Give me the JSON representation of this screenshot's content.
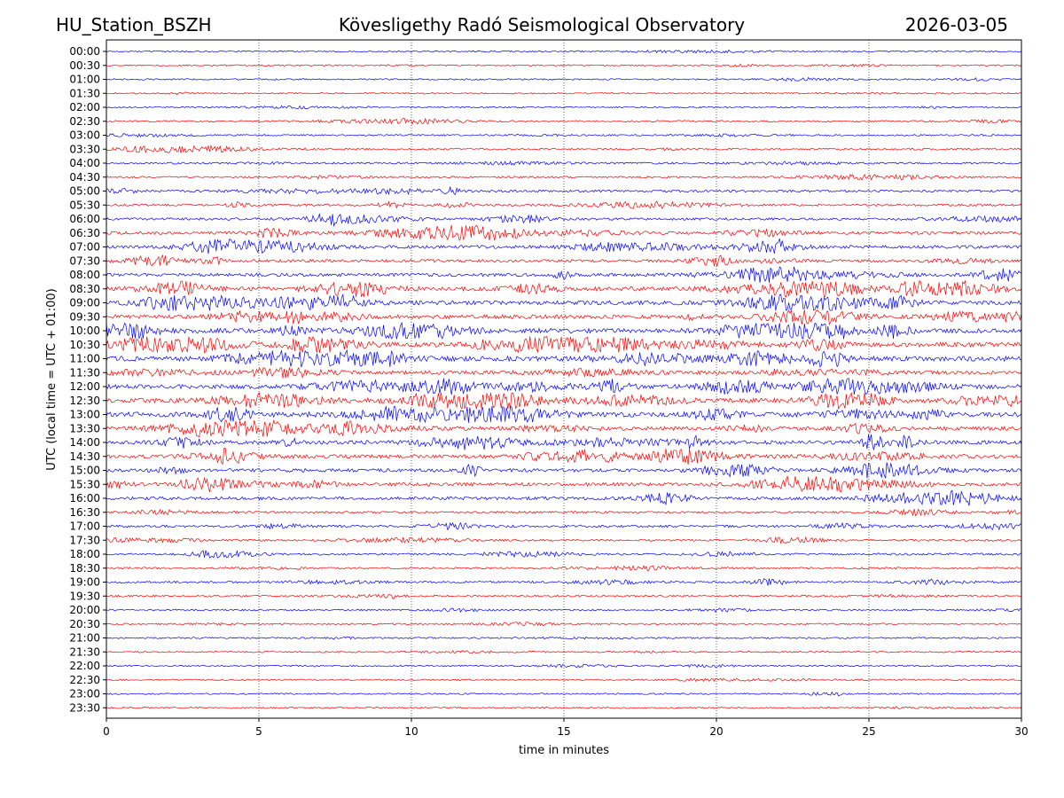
{
  "header": {
    "station": "HU_Station_BSZH",
    "observatory": "Kövesligethy Radó Seismological Observatory",
    "date": "2026-03-05"
  },
  "chart_data": {
    "type": "line",
    "title": "Kövesligethy Radó Seismological Observatory",
    "xlabel": "time in minutes",
    "ylabel": "UTC (local time = UTC + 01:00)",
    "xlim": [
      0,
      30
    ],
    "x_ticks": [
      "0",
      "5",
      "10",
      "15",
      "20",
      "25",
      "30"
    ],
    "x_tick_values": [
      0,
      5,
      10,
      15,
      20,
      25,
      30
    ],
    "vertical_gridlines_at": [
      5,
      10,
      15,
      20,
      25
    ],
    "grid": "vertical dotted",
    "colors": {
      "even_row": "#0000ff",
      "odd_row": "#ff0000"
    },
    "rows": [
      {
        "label": "00:00",
        "activity": 0.1
      },
      {
        "label": "00:30",
        "activity": 0.1
      },
      {
        "label": "01:00",
        "activity": 0.12
      },
      {
        "label": "01:30",
        "activity": 0.1
      },
      {
        "label": "02:00",
        "activity": 0.12
      },
      {
        "label": "02:30",
        "activity": 0.15
      },
      {
        "label": "03:00",
        "activity": 0.15
      },
      {
        "label": "03:30",
        "activity": 0.2
      },
      {
        "label": "04:00",
        "activity": 0.2
      },
      {
        "label": "04:30",
        "activity": 0.2
      },
      {
        "label": "05:00",
        "activity": 0.3
      },
      {
        "label": "05:30",
        "activity": 0.3
      },
      {
        "label": "06:00",
        "activity": 0.35
      },
      {
        "label": "06:30",
        "activity": 0.5
      },
      {
        "label": "07:00",
        "activity": 0.55
      },
      {
        "label": "07:30",
        "activity": 0.5
      },
      {
        "label": "08:00",
        "activity": 0.55
      },
      {
        "label": "08:30",
        "activity": 0.8
      },
      {
        "label": "09:00",
        "activity": 0.8
      },
      {
        "label": "09:30",
        "activity": 0.75
      },
      {
        "label": "10:00",
        "activity": 0.9
      },
      {
        "label": "10:30",
        "activity": 0.9
      },
      {
        "label": "11:00",
        "activity": 0.95
      },
      {
        "label": "11:30",
        "activity": 0.7
      },
      {
        "label": "12:00",
        "activity": 0.8
      },
      {
        "label": "12:30",
        "activity": 0.85
      },
      {
        "label": "13:00",
        "activity": 0.95
      },
      {
        "label": "13:30",
        "activity": 0.7
      },
      {
        "label": "14:00",
        "activity": 0.7
      },
      {
        "label": "14:30",
        "activity": 0.65
      },
      {
        "label": "15:00",
        "activity": 0.6
      },
      {
        "label": "15:30",
        "activity": 0.65
      },
      {
        "label": "16:00",
        "activity": 0.55
      },
      {
        "label": "16:30",
        "activity": 0.3
      },
      {
        "label": "17:00",
        "activity": 0.35
      },
      {
        "label": "17:30",
        "activity": 0.25
      },
      {
        "label": "18:00",
        "activity": 0.25
      },
      {
        "label": "18:30",
        "activity": 0.2
      },
      {
        "label": "19:00",
        "activity": 0.25
      },
      {
        "label": "19:30",
        "activity": 0.2
      },
      {
        "label": "20:00",
        "activity": 0.15
      },
      {
        "label": "20:30",
        "activity": 0.12
      },
      {
        "label": "21:00",
        "activity": 0.12
      },
      {
        "label": "21:30",
        "activity": 0.1
      },
      {
        "label": "22:00",
        "activity": 0.12
      },
      {
        "label": "22:30",
        "activity": 0.1
      },
      {
        "label": "23:00",
        "activity": 0.1
      },
      {
        "label": "23:30",
        "activity": 0.1
      }
    ]
  }
}
